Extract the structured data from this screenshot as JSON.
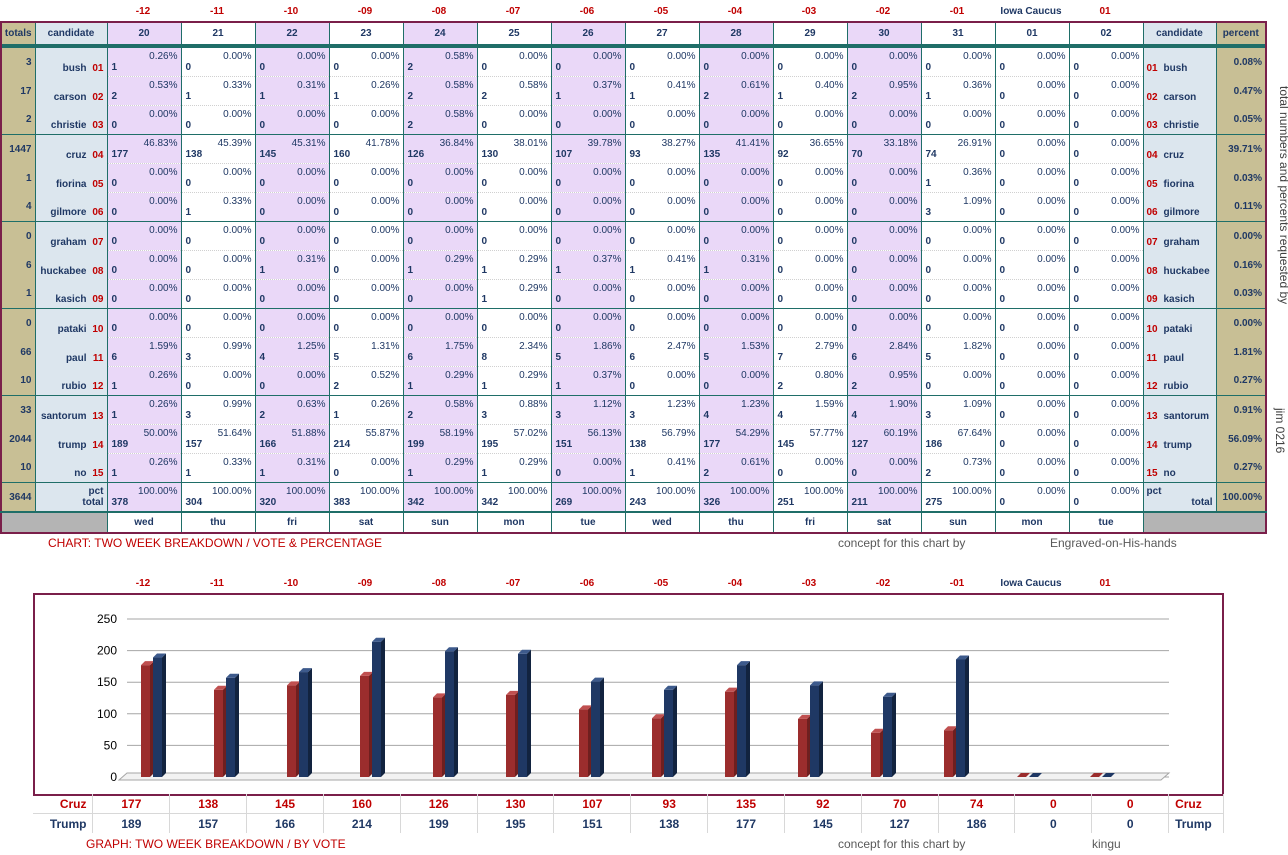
{
  "countdown": [
    "-12",
    "-11",
    "-10",
    "-09",
    "-08",
    "-07",
    "-06",
    "-05",
    "-04",
    "-03",
    "-02",
    "-01",
    "Iowa Caucus",
    "01"
  ],
  "header": {
    "totals": "totals",
    "candidate": "candidate",
    "percent": "percent",
    "dates": [
      "20",
      "21",
      "22",
      "23",
      "24",
      "25",
      "26",
      "27",
      "28",
      "29",
      "30",
      "31",
      "01",
      "02"
    ],
    "days": [
      "wed",
      "thu",
      "fri",
      "sat",
      "sun",
      "mon",
      "tue",
      "wed",
      "thu",
      "fri",
      "sat",
      "sun",
      "mon",
      "tue"
    ]
  },
  "rows": [
    {
      "total": "3",
      "name": "bush",
      "no": "01",
      "pct": "0.08%",
      "votes": [
        "1",
        "0",
        "0",
        "0",
        "2",
        "0",
        "0",
        "0",
        "0",
        "0",
        "0",
        "0",
        "0",
        "0"
      ],
      "pcts": [
        "0.26%",
        "0.00%",
        "0.00%",
        "0.00%",
        "0.58%",
        "0.00%",
        "0.00%",
        "0.00%",
        "0.00%",
        "0.00%",
        "0.00%",
        "0.00%",
        "0.00%",
        "0.00%"
      ]
    },
    {
      "total": "17",
      "name": "carson",
      "no": "02",
      "pct": "0.47%",
      "votes": [
        "2",
        "1",
        "1",
        "1",
        "2",
        "2",
        "1",
        "1",
        "2",
        "1",
        "2",
        "1",
        "0",
        "0"
      ],
      "pcts": [
        "0.53%",
        "0.33%",
        "0.31%",
        "0.26%",
        "0.58%",
        "0.58%",
        "0.37%",
        "0.41%",
        "0.61%",
        "0.40%",
        "0.95%",
        "0.36%",
        "0.00%",
        "0.00%"
      ]
    },
    {
      "total": "2",
      "name": "christie",
      "no": "03",
      "pct": "0.05%",
      "votes": [
        "0",
        "0",
        "0",
        "0",
        "2",
        "0",
        "0",
        "0",
        "0",
        "0",
        "0",
        "0",
        "0",
        "0"
      ],
      "pcts": [
        "0.00%",
        "0.00%",
        "0.00%",
        "0.00%",
        "0.58%",
        "0.00%",
        "0.00%",
        "0.00%",
        "0.00%",
        "0.00%",
        "0.00%",
        "0.00%",
        "0.00%",
        "0.00%"
      ]
    },
    {
      "total": "1447",
      "name": "cruz",
      "no": "04",
      "pct": "39.71%",
      "votes": [
        "177",
        "138",
        "145",
        "160",
        "126",
        "130",
        "107",
        "93",
        "135",
        "92",
        "70",
        "74",
        "0",
        "0"
      ],
      "pcts": [
        "46.83%",
        "45.39%",
        "45.31%",
        "41.78%",
        "36.84%",
        "38.01%",
        "39.78%",
        "38.27%",
        "41.41%",
        "36.65%",
        "33.18%",
        "26.91%",
        "0.00%",
        "0.00%"
      ]
    },
    {
      "total": "1",
      "name": "fiorina",
      "no": "05",
      "pct": "0.03%",
      "votes": [
        "0",
        "0",
        "0",
        "0",
        "0",
        "0",
        "0",
        "0",
        "0",
        "0",
        "0",
        "1",
        "0",
        "0"
      ],
      "pcts": [
        "0.00%",
        "0.00%",
        "0.00%",
        "0.00%",
        "0.00%",
        "0.00%",
        "0.00%",
        "0.00%",
        "0.00%",
        "0.00%",
        "0.00%",
        "0.36%",
        "0.00%",
        "0.00%"
      ]
    },
    {
      "total": "4",
      "name": "gilmore",
      "no": "06",
      "pct": "0.11%",
      "votes": [
        "0",
        "1",
        "0",
        "0",
        "0",
        "0",
        "0",
        "0",
        "0",
        "0",
        "0",
        "3",
        "0",
        "0"
      ],
      "pcts": [
        "0.00%",
        "0.33%",
        "0.00%",
        "0.00%",
        "0.00%",
        "0.00%",
        "0.00%",
        "0.00%",
        "0.00%",
        "0.00%",
        "0.00%",
        "1.09%",
        "0.00%",
        "0.00%"
      ]
    },
    {
      "total": "0",
      "name": "graham",
      "no": "07",
      "pct": "0.00%",
      "votes": [
        "0",
        "0",
        "0",
        "0",
        "0",
        "0",
        "0",
        "0",
        "0",
        "0",
        "0",
        "0",
        "0",
        "0"
      ],
      "pcts": [
        "0.00%",
        "0.00%",
        "0.00%",
        "0.00%",
        "0.00%",
        "0.00%",
        "0.00%",
        "0.00%",
        "0.00%",
        "0.00%",
        "0.00%",
        "0.00%",
        "0.00%",
        "0.00%"
      ]
    },
    {
      "total": "6",
      "name": "huckabee",
      "no": "08",
      "pct": "0.16%",
      "votes": [
        "0",
        "0",
        "1",
        "0",
        "1",
        "1",
        "1",
        "1",
        "1",
        "0",
        "0",
        "0",
        "0",
        "0"
      ],
      "pcts": [
        "0.00%",
        "0.00%",
        "0.31%",
        "0.00%",
        "0.29%",
        "0.29%",
        "0.37%",
        "0.41%",
        "0.31%",
        "0.00%",
        "0.00%",
        "0.00%",
        "0.00%",
        "0.00%"
      ]
    },
    {
      "total": "1",
      "name": "kasich",
      "no": "09",
      "pct": "0.03%",
      "votes": [
        "0",
        "0",
        "0",
        "0",
        "0",
        "1",
        "0",
        "0",
        "0",
        "0",
        "0",
        "0",
        "0",
        "0"
      ],
      "pcts": [
        "0.00%",
        "0.00%",
        "0.00%",
        "0.00%",
        "0.00%",
        "0.29%",
        "0.00%",
        "0.00%",
        "0.00%",
        "0.00%",
        "0.00%",
        "0.00%",
        "0.00%",
        "0.00%"
      ]
    },
    {
      "total": "0",
      "name": "pataki",
      "no": "10",
      "pct": "0.00%",
      "votes": [
        "0",
        "0",
        "0",
        "0",
        "0",
        "0",
        "0",
        "0",
        "0",
        "0",
        "0",
        "0",
        "0",
        "0"
      ],
      "pcts": [
        "0.00%",
        "0.00%",
        "0.00%",
        "0.00%",
        "0.00%",
        "0.00%",
        "0.00%",
        "0.00%",
        "0.00%",
        "0.00%",
        "0.00%",
        "0.00%",
        "0.00%",
        "0.00%"
      ]
    },
    {
      "total": "66",
      "name": "paul",
      "no": "11",
      "pct": "1.81%",
      "votes": [
        "6",
        "3",
        "4",
        "5",
        "6",
        "8",
        "5",
        "6",
        "5",
        "7",
        "6",
        "5",
        "0",
        "0"
      ],
      "pcts": [
        "1.59%",
        "0.99%",
        "1.25%",
        "1.31%",
        "1.75%",
        "2.34%",
        "1.86%",
        "2.47%",
        "1.53%",
        "2.79%",
        "2.84%",
        "1.82%",
        "0.00%",
        "0.00%"
      ]
    },
    {
      "total": "10",
      "name": "rubio",
      "no": "12",
      "pct": "0.27%",
      "votes": [
        "1",
        "0",
        "0",
        "2",
        "1",
        "1",
        "1",
        "0",
        "0",
        "2",
        "2",
        "0",
        "0",
        "0"
      ],
      "pcts": [
        "0.26%",
        "0.00%",
        "0.00%",
        "0.52%",
        "0.29%",
        "0.29%",
        "0.37%",
        "0.00%",
        "0.00%",
        "0.80%",
        "0.95%",
        "0.00%",
        "0.00%",
        "0.00%"
      ]
    },
    {
      "total": "33",
      "name": "santorum",
      "no": "13",
      "pct": "0.91%",
      "votes": [
        "1",
        "3",
        "2",
        "1",
        "2",
        "3",
        "3",
        "3",
        "4",
        "4",
        "4",
        "3",
        "0",
        "0"
      ],
      "pcts": [
        "0.26%",
        "0.99%",
        "0.63%",
        "0.26%",
        "0.58%",
        "0.88%",
        "1.12%",
        "1.23%",
        "1.23%",
        "1.59%",
        "1.90%",
        "1.09%",
        "0.00%",
        "0.00%"
      ]
    },
    {
      "total": "2044",
      "name": "trump",
      "no": "14",
      "pct": "56.09%",
      "votes": [
        "189",
        "157",
        "166",
        "214",
        "199",
        "195",
        "151",
        "138",
        "177",
        "145",
        "127",
        "186",
        "0",
        "0"
      ],
      "pcts": [
        "50.00%",
        "51.64%",
        "51.88%",
        "55.87%",
        "58.19%",
        "57.02%",
        "56.13%",
        "56.79%",
        "54.29%",
        "57.77%",
        "60.19%",
        "67.64%",
        "0.00%",
        "0.00%"
      ]
    },
    {
      "total": "10",
      "name": "no",
      "no": "15",
      "pct": "0.27%",
      "votes": [
        "1",
        "1",
        "1",
        "0",
        "1",
        "1",
        "0",
        "1",
        "2",
        "0",
        "0",
        "2",
        "0",
        "0"
      ],
      "pcts": [
        "0.26%",
        "0.33%",
        "0.31%",
        "0.00%",
        "0.29%",
        "0.29%",
        "0.00%",
        "0.41%",
        "0.61%",
        "0.00%",
        "0.00%",
        "0.73%",
        "0.00%",
        "0.00%"
      ]
    }
  ],
  "totals_row": {
    "total": "3644",
    "pct_label": "pct",
    "total_label": "total",
    "pct": "100.00%",
    "votes": [
      "378",
      "304",
      "320",
      "383",
      "342",
      "342",
      "269",
      "243",
      "326",
      "251",
      "211",
      "275",
      "0",
      "0"
    ],
    "pcts": [
      "100.00%",
      "100.00%",
      "100.00%",
      "100.00%",
      "100.00%",
      "100.00%",
      "100.00%",
      "100.00%",
      "100.00%",
      "100.00%",
      "100.00%",
      "100.00%",
      "0.00%",
      "0.00%"
    ]
  },
  "captions": {
    "chart_title": "CHART: TWO WEEK BREAKDOWN / VOTE & PERCENTAGE",
    "concept1": "concept for this chart by",
    "author1": "Engraved-on-His-hands",
    "graph_title": "GRAPH: TWO WEEK BREAKDOWN / BY VOTE",
    "concept2": "concept for this chart by",
    "author2": "kingu",
    "side_note": "total numbers and percents requested by",
    "side_note2": "jim 0216"
  },
  "colors": {
    "cruz": "#9b2d2d",
    "trump": "#1f3864",
    "accent": "#7a1f4a",
    "teal": "#1f6e68"
  },
  "chart_data": {
    "type": "bar",
    "categories": [
      "-12",
      "-11",
      "-10",
      "-09",
      "-08",
      "-07",
      "-06",
      "-05",
      "-04",
      "-03",
      "-02",
      "-01",
      "Iowa Caucus",
      "01"
    ],
    "series": [
      {
        "name": "Cruz",
        "values": [
          177,
          138,
          145,
          160,
          126,
          130,
          107,
          93,
          135,
          92,
          70,
          74,
          0,
          0
        ]
      },
      {
        "name": "Trump",
        "values": [
          189,
          157,
          166,
          214,
          199,
          195,
          151,
          138,
          177,
          145,
          127,
          186,
          0,
          0
        ]
      }
    ],
    "yticks": [
      "0",
      "50",
      "100",
      "150",
      "200",
      "250"
    ],
    "ylim": [
      0,
      250
    ],
    "grid": true
  }
}
